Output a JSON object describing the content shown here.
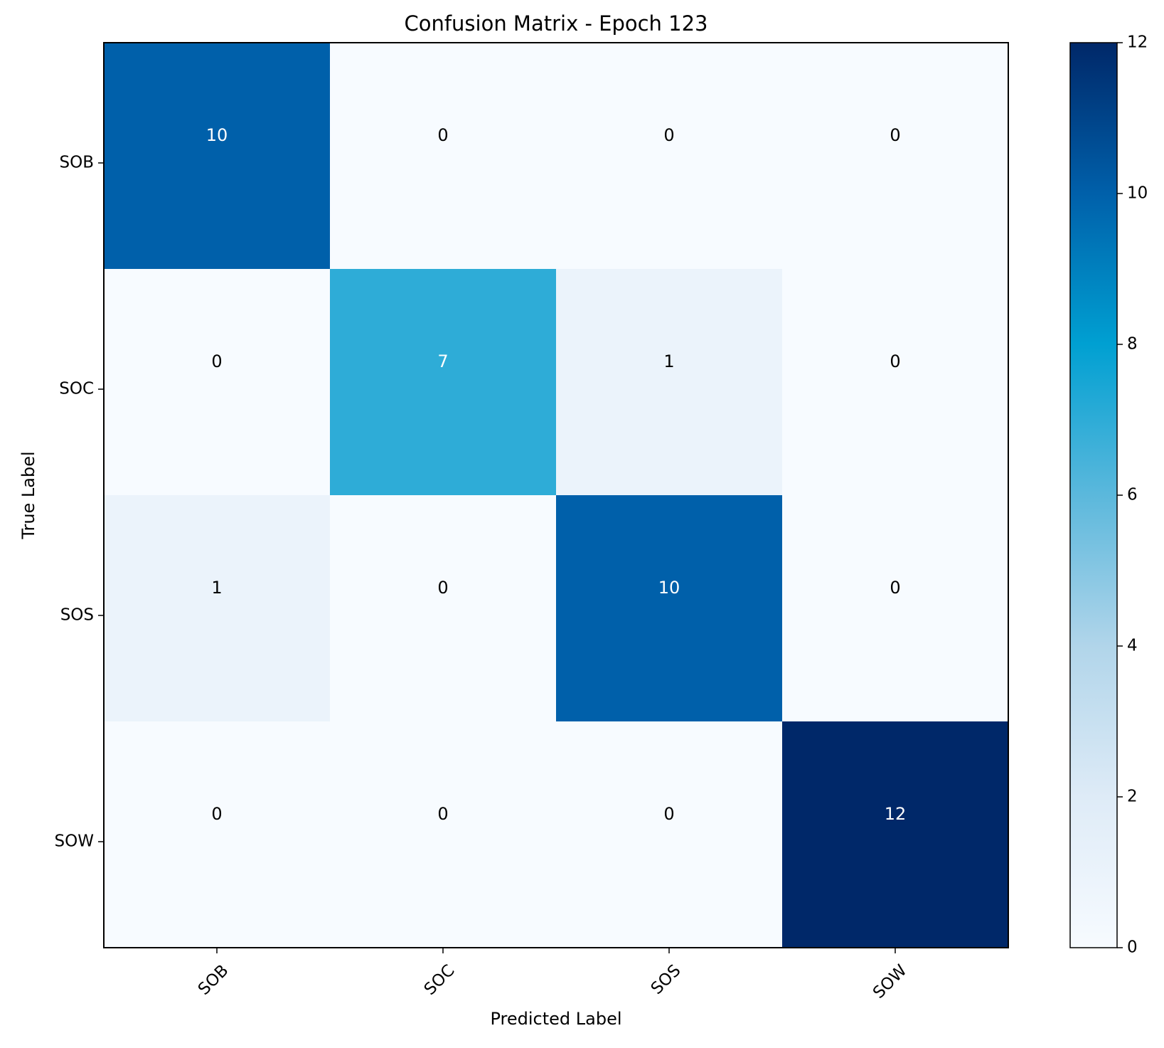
{
  "chart_data": {
    "type": "heatmap",
    "title": "Confusion Matrix - Epoch 123",
    "xlabel": "Predicted Label",
    "ylabel": "True Label",
    "row_labels": [
      "SOB",
      "SOC",
      "SOS",
      "SOW"
    ],
    "col_labels": [
      "SOB",
      "SOC",
      "SOS",
      "SOW"
    ],
    "values": [
      [
        10,
        0,
        0,
        0
      ],
      [
        0,
        7,
        1,
        0
      ],
      [
        1,
        0,
        10,
        0
      ],
      [
        0,
        0,
        0,
        12
      ]
    ],
    "colorbar": {
      "min": 0,
      "max": 12,
      "ticks": [
        0,
        2,
        4,
        6,
        8,
        10,
        12
      ],
      "colors": [
        "#f7fbff",
        "#deebf7",
        "#b1d5ea",
        "#5bb8dc",
        "#00a0d2",
        "#0060aa",
        "#002869"
      ]
    },
    "grid": false
  }
}
